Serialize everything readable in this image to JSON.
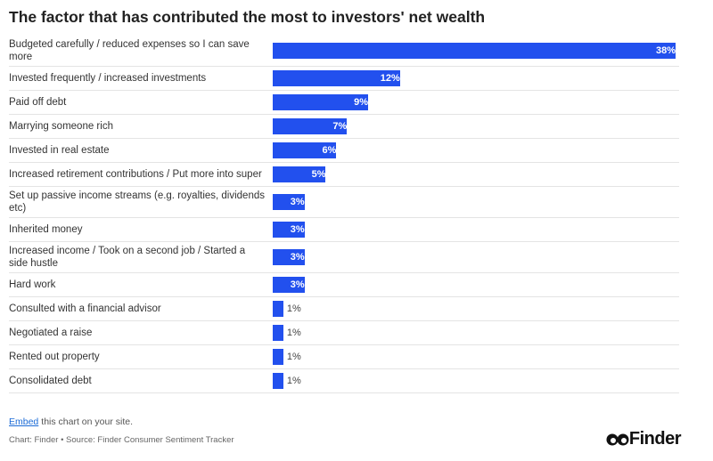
{
  "chart_data": {
    "type": "hbar",
    "title": "The factor that has contributed the most to investors' net wealth",
    "categories": [
      "Budgeted carefully / reduced expenses so I can save more",
      "Invested frequently / increased investments",
      "Paid off debt",
      "Marrying someone rich",
      "Invested in real estate",
      "Increased retirement contributions / Put more into super",
      "Set up passive income streams (e.g. royalties, dividends etc)",
      "Inherited money",
      "Increased income / Took on a second job / Started a side hustle",
      "Hard work",
      "Consulted with a financial advisor",
      "Negotiated a raise",
      "Rented out property",
      "Consolidated debt"
    ],
    "values": [
      38,
      12,
      9,
      7,
      6,
      5,
      3,
      3,
      3,
      3,
      1,
      1,
      1,
      1
    ],
    "value_labels": [
      "38%",
      "12%",
      "9%",
      "7%",
      "6%",
      "5%",
      "3%",
      "3%",
      "3%",
      "3%",
      "1%",
      "1%",
      "1%",
      "1%"
    ],
    "color": "#2250ee"
  },
  "footer": {
    "embed_link": "Embed",
    "embed_text": "this chart on your site.",
    "source": "Chart: Finder • Source: Finder Consumer Sentiment Tracker",
    "logo": "Finder"
  }
}
